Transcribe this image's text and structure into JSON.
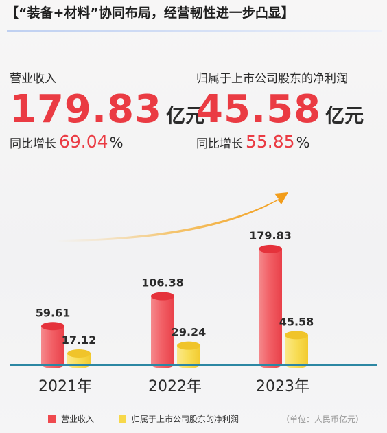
{
  "title": "【“装备+材料”协同布局，经营韧性进一步凸显】",
  "kpis": [
    {
      "label": "营业收入",
      "value": "179.83",
      "unit": "亿元",
      "yoy_label": "同比增长",
      "yoy_value": "69.04",
      "yoy_unit": "%"
    },
    {
      "label": "归属于上市公司股东的净利润",
      "value": "45.58",
      "unit": "亿元",
      "yoy_label": "同比增长",
      "yoy_value": "55.85",
      "yoy_unit": "%"
    }
  ],
  "unit_note": "（单位：人民币亿元）",
  "colors": {
    "revenue": "#ef4a4f",
    "net_profit": "#f7d84a",
    "accent": "#ea3b43",
    "arrow": "#f2a21a",
    "baseline": "#2c87a3"
  },
  "chart_data": {
    "type": "bar",
    "categories": [
      "2021年",
      "2022年",
      "2023年"
    ],
    "series": [
      {
        "name": "营业收入",
        "values": [
          59.61,
          106.38,
          179.83
        ],
        "labels": [
          "59.61",
          "106.38",
          "179.83"
        ]
      },
      {
        "name": "归属于上市公司股东的净利润",
        "values": [
          17.12,
          29.24,
          45.58
        ],
        "labels": [
          "17.12",
          "29.24",
          "45.58"
        ]
      }
    ],
    "ylim": [
      0,
      200
    ],
    "grid": false,
    "legend": "bottom"
  }
}
